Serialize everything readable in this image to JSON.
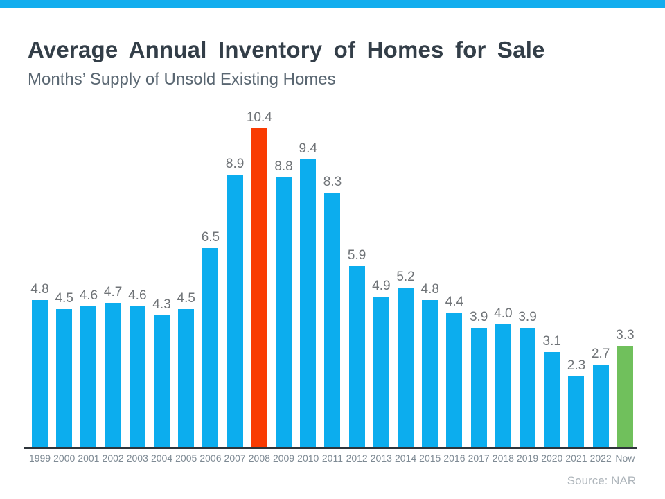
{
  "topbar": {
    "color": "#12ADEE"
  },
  "header": {
    "title": "Average Annual Inventory of Homes for Sale",
    "subtitle": "Months’ Supply of Unsold Existing Homes"
  },
  "chart_data": {
    "type": "bar",
    "title": "Average Annual Inventory of Homes for Sale",
    "subtitle": "Months’ Supply of Unsold Existing Homes",
    "categories": [
      "1999",
      "2000",
      "2001",
      "2002",
      "2003",
      "2004",
      "2005",
      "2006",
      "2007",
      "2008",
      "2009",
      "2010",
      "2011",
      "2012",
      "2013",
      "2014",
      "2015",
      "2016",
      "2017",
      "2018",
      "2019",
      "2020",
      "2021",
      "2022",
      "Now"
    ],
    "values": [
      4.8,
      4.5,
      4.6,
      4.7,
      4.6,
      4.3,
      4.5,
      6.5,
      8.9,
      10.4,
      8.8,
      9.4,
      8.3,
      5.9,
      4.9,
      5.2,
      4.8,
      4.4,
      3.9,
      4.0,
      3.9,
      3.1,
      2.3,
      2.7,
      3.3
    ],
    "value_labels": [
      "4.8",
      "4.5",
      "4.6",
      "4.7",
      "4.6",
      "4.3",
      "4.5",
      "6.5",
      "8.9",
      "10.4",
      "8.8",
      "9.4",
      "8.3",
      "5.9",
      "4.9",
      "5.2",
      "4.8",
      "4.4",
      "3.9",
      "4.0",
      "3.9",
      "3.1",
      "2.3",
      "2.7",
      "3.3"
    ],
    "colors": {
      "default": "#0CADEE",
      "highlights": {
        "2008": "#F93B02",
        "Now": "#70C05C"
      }
    },
    "ylim": [
      0,
      10.4
    ],
    "xlabel": "",
    "ylabel": "",
    "grid": false,
    "legend": false
  },
  "footer": {
    "source": "Source: NAR"
  }
}
